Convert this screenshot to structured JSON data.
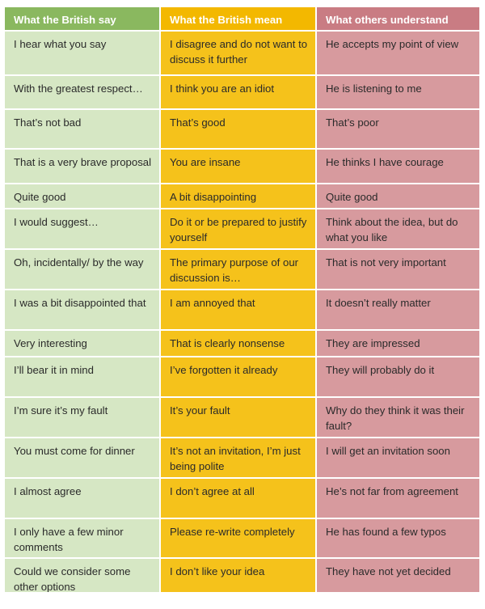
{
  "colors": {
    "header_green": "#8ab85f",
    "header_yellow": "#f3b800",
    "header_pink": "#c97c83",
    "col_green": "#d6e7c4",
    "col_yellow": "#f5c21b",
    "col_pink": "#d79a9e"
  },
  "headers": [
    "What the British say",
    "What the British mean",
    "What others understand"
  ],
  "rows": [
    [
      "I hear what you say",
      "I disagree and do not want to discuss it further",
      "He accepts my point of view"
    ],
    [
      "With the greatest respect…",
      "I think you are an idiot",
      "He is listening to me"
    ],
    [
      "That’s not bad",
      "That’s good",
      "That’s poor"
    ],
    [
      "That is a very brave proposal",
      "You are insane",
      "He thinks I have courage"
    ],
    [
      "Quite good",
      "A bit disappointing",
      "Quite good"
    ],
    [
      "I would suggest…",
      "Do it or be prepared to justify yourself",
      "Think about the idea, but do what you like"
    ],
    [
      "Oh, incidentally/ by the way",
      "The primary purpose of our discussion is…",
      "That is not very important"
    ],
    [
      "I was a bit disappointed that",
      "I am annoyed that",
      "It doesn’t really matter"
    ],
    [
      "Very interesting",
      "That is clearly nonsense",
      "They are impressed"
    ],
    [
      "I’ll bear it in mind",
      "I’ve forgotten it already",
      "They will probably do it"
    ],
    [
      "I’m sure it’s my fault",
      "It’s your fault",
      "Why do they think it was their fault?"
    ],
    [
      "You must come for dinner",
      "It’s not an invitation, I’m just being polite",
      "I will get an invitation soon"
    ],
    [
      "I almost agree",
      "I don’t agree at all",
      "He’s not far from agreement"
    ],
    [
      "I only have a few minor comments",
      "Please re-write completely",
      "He has found a few typos"
    ],
    [
      "Could we consider some other options",
      "I don’t like your idea",
      "They have not yet decided"
    ]
  ]
}
